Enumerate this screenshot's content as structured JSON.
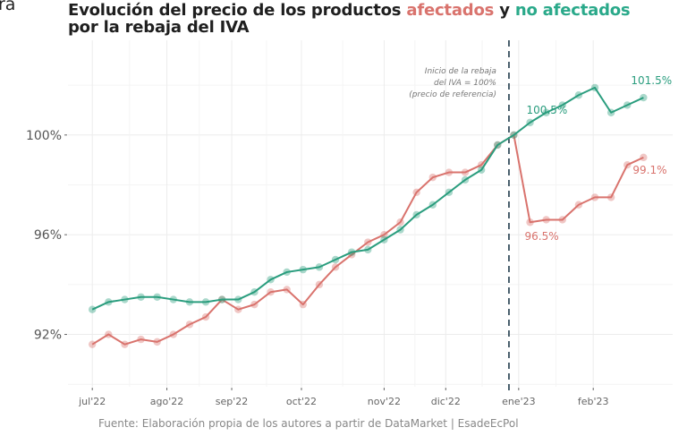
{
  "corner_text": "ra",
  "title": {
    "line1_prefix": "Evolución del precio de los productos ",
    "red_word": "afectados",
    "middle": " y ",
    "green_word": "no afectados",
    "line2": "por la rebaja del IVA"
  },
  "source": "Fuente: Elaboración propia de los autores a partir de DataMarket | EsadeEcPol",
  "colors": {
    "afectados": "#d9736d",
    "no_afectados": "#2a9d7e",
    "vline": "#1f3a4a"
  },
  "chart_data": {
    "type": "line",
    "title": "Evolución del precio de los productos afectados y no afectados por la rebaja del IVA",
    "xlabel": "",
    "ylabel": "",
    "ylim": [
      89.9,
      103.8
    ],
    "yticks": [
      92,
      96,
      100
    ],
    "ytick_labels": [
      "92%",
      "96%",
      "100%"
    ],
    "xtick_labels": [
      "jul'22",
      "ago'22",
      "sep'22",
      "oct'22",
      "nov'22",
      "dic'22",
      "ene'23",
      "feb'23"
    ],
    "xtick_positions": [
      0,
      4.6,
      8.6,
      12.9,
      18,
      21.8,
      26.3,
      30.9
    ],
    "grid": true,
    "x": [
      0,
      1,
      2,
      3,
      4,
      5,
      6,
      7,
      8,
      9,
      10,
      11,
      12,
      13,
      14,
      15,
      16,
      17,
      18,
      19,
      20,
      21,
      22,
      23,
      24,
      25,
      26,
      27,
      28,
      29,
      30,
      31,
      32,
      33,
      34
    ],
    "series": [
      {
        "name": "afectados",
        "values": [
          91.6,
          92.0,
          91.6,
          91.8,
          91.7,
          92.0,
          92.4,
          92.7,
          93.4,
          93.0,
          93.2,
          93.7,
          93.8,
          93.2,
          94.0,
          94.7,
          95.2,
          95.7,
          96.0,
          96.5,
          97.7,
          98.3,
          98.5,
          98.5,
          98.8,
          99.6,
          100.0,
          96.5,
          96.6,
          96.6,
          97.2,
          97.5,
          97.5,
          98.8,
          99.1
        ]
      },
      {
        "name": "no afectados",
        "values": [
          93.0,
          93.3,
          93.4,
          93.5,
          93.5,
          93.4,
          93.3,
          93.3,
          93.4,
          93.4,
          93.7,
          94.2,
          94.5,
          94.6,
          94.7,
          95.0,
          95.3,
          95.4,
          95.8,
          96.2,
          96.8,
          97.2,
          97.7,
          98.2,
          98.6,
          99.6,
          100.0,
          100.5,
          100.9,
          101.2,
          101.6,
          101.9,
          100.9,
          101.2,
          101.5
        ]
      }
    ],
    "vline": {
      "x": 25.7,
      "label": [
        "Inicio de la rebaja",
        "del IVA = 100%",
        "(precio de referencia)"
      ]
    },
    "annotations": [
      {
        "text": "100.5%",
        "series": "no afectados",
        "x": 27
      },
      {
        "text": "101.5%",
        "series": "no afectados",
        "x": 34
      },
      {
        "text": "96.5%",
        "series": "afectados",
        "x": 27
      },
      {
        "text": "99.1%",
        "series": "afectados",
        "x": 34
      }
    ]
  }
}
